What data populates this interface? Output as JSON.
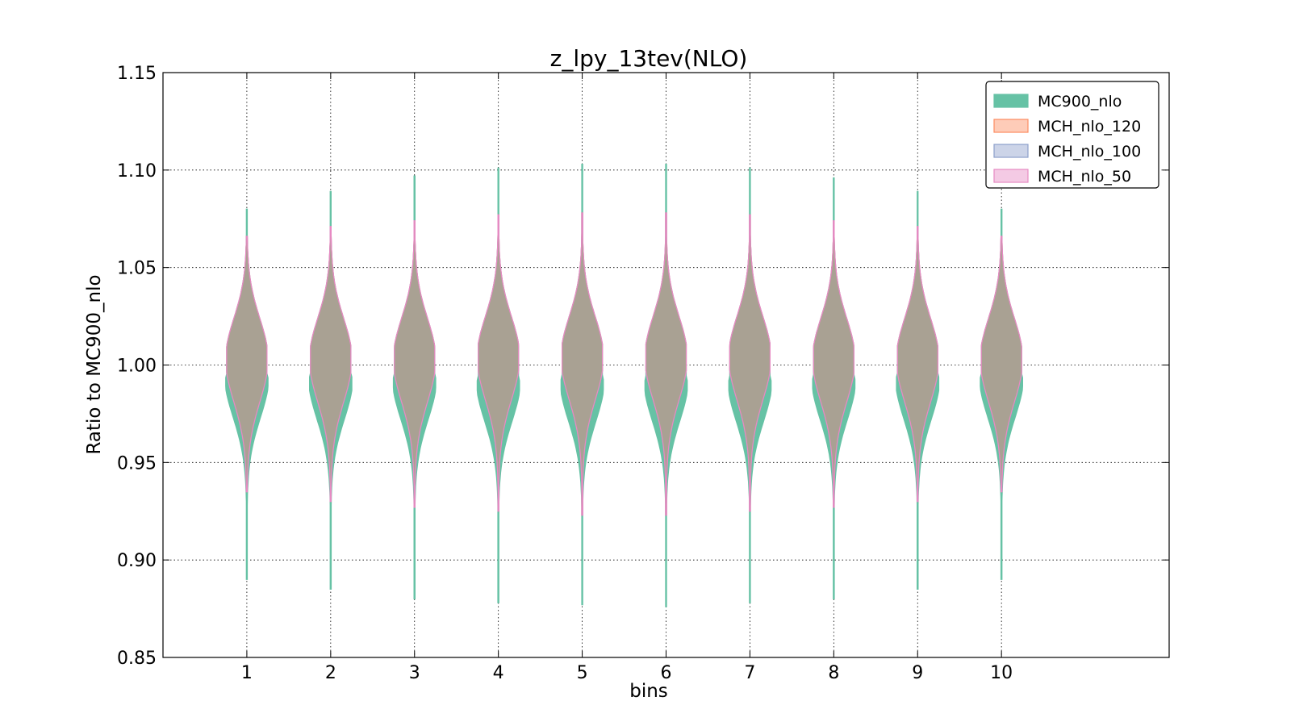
{
  "chart_data": {
    "type": "violin",
    "title": "z_lpy_13tev(NLO)",
    "xlabel": "bins",
    "ylabel": "Ratio to MC900_nlo",
    "ylim": [
      0.85,
      1.15
    ],
    "xlim": [
      0,
      12
    ],
    "yticks": [
      "0.85",
      "0.90",
      "0.95",
      "1.00",
      "1.05",
      "1.10",
      "1.15"
    ],
    "categories": [
      "1",
      "2",
      "3",
      "4",
      "5",
      "6",
      "7",
      "8",
      "9",
      "10"
    ],
    "grid": true,
    "legend_position": "top-right",
    "series": [
      {
        "name": "MC900_nlo",
        "fill": "#66c2a5",
        "edge": "#66c2a5",
        "min": [
          0.89,
          0.885,
          0.88,
          0.878,
          0.877,
          0.876,
          0.878,
          0.88,
          0.885,
          0.89
        ],
        "max": [
          1.08,
          1.089,
          1.097,
          1.101,
          1.103,
          1.103,
          1.101,
          1.096,
          1.089,
          1.08
        ],
        "center": [
          0.995,
          0.994,
          0.994,
          0.993,
          0.993,
          0.993,
          0.993,
          0.994,
          0.994,
          0.995
        ]
      },
      {
        "name": "MCH_nlo_120",
        "fill": "#fc8d62",
        "edge": "#fc8d62",
        "min": [
          0.935,
          0.93,
          0.927,
          0.925,
          0.923,
          0.923,
          0.925,
          0.927,
          0.93,
          0.935
        ],
        "max": [
          1.066,
          1.071,
          1.074,
          1.077,
          1.078,
          1.078,
          1.077,
          1.074,
          1.071,
          1.066
        ],
        "center": [
          1.003,
          1.003,
          1.003,
          1.004,
          1.004,
          1.004,
          1.004,
          1.003,
          1.003,
          1.003
        ]
      },
      {
        "name": "MCH_nlo_100",
        "fill": "#8da0cb",
        "edge": "#8da0cb",
        "min": [
          0.935,
          0.93,
          0.927,
          0.925,
          0.923,
          0.923,
          0.925,
          0.927,
          0.93,
          0.935
        ],
        "max": [
          1.066,
          1.071,
          1.074,
          1.077,
          1.078,
          1.078,
          1.077,
          1.074,
          1.071,
          1.066
        ],
        "center": [
          1.003,
          1.003,
          1.003,
          1.004,
          1.004,
          1.004,
          1.004,
          1.003,
          1.003,
          1.003
        ]
      },
      {
        "name": "MCH_nlo_50",
        "fill": "#e78ac3",
        "edge": "#e78ac3",
        "min": [
          0.935,
          0.93,
          0.927,
          0.925,
          0.923,
          0.923,
          0.925,
          0.927,
          0.93,
          0.935
        ],
        "max": [
          1.066,
          1.071,
          1.074,
          1.077,
          1.078,
          1.078,
          1.077,
          1.074,
          1.071,
          1.066
        ],
        "center": [
          1.003,
          1.003,
          1.003,
          1.004,
          1.004,
          1.004,
          1.004,
          1.003,
          1.003,
          1.003
        ]
      }
    ],
    "overlap_color": "#a9a193"
  }
}
